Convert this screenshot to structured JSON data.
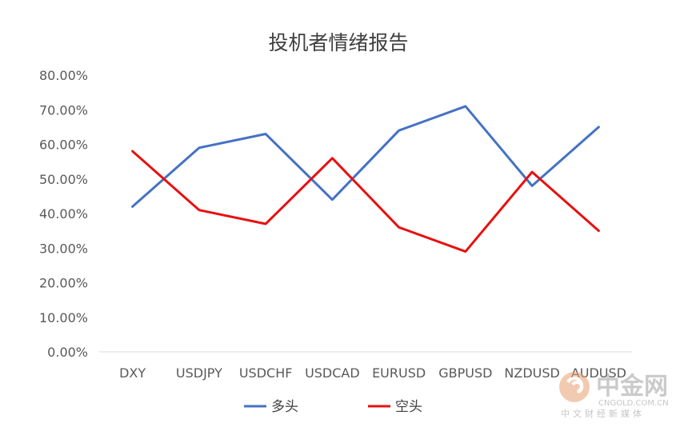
{
  "chart_data": {
    "type": "line",
    "title": "投机者情绪报告",
    "categories": [
      "DXY",
      "USDJPY",
      "USDCHF",
      "USDCAD",
      "EURUSD",
      "GBPUSD",
      "NZDUSD",
      "AUDUSD"
    ],
    "series": [
      {
        "name": "多头",
        "color": "#4472C4",
        "values": [
          42,
          59,
          63,
          44,
          64,
          71,
          48,
          65
        ]
      },
      {
        "name": "空头",
        "color": "#E81010",
        "values": [
          58,
          41,
          37,
          56,
          36,
          29,
          52,
          35
        ]
      }
    ],
    "ylim": [
      0,
      80
    ],
    "ytick_labels": [
      "0.00%",
      "10.00%",
      "20.00%",
      "30.00%",
      "40.00%",
      "50.00%",
      "60.00%",
      "70.00%",
      "80.00%"
    ],
    "grid": false,
    "legend": "bottom"
  },
  "watermark": {
    "name": "中金网",
    "domain": "CNGOLD.COM.CN",
    "tagline": "中文财经新媒体"
  }
}
